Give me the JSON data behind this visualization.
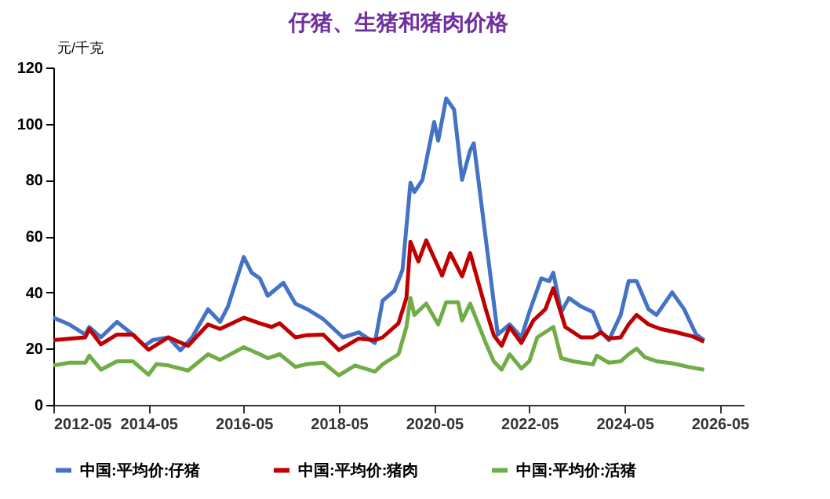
{
  "chart_data": {
    "type": "line",
    "title": "仔猪、生猪和猪肉价格",
    "ylabel": "元/千克",
    "xlim": [
      "2012-05",
      "2026-11"
    ],
    "xticks": [
      "2012-05",
      "2014-05",
      "2016-05",
      "2018-05",
      "2020-05",
      "2022-05",
      "2024-05",
      "2026-05"
    ],
    "ylim": [
      0,
      120
    ],
    "yticks": [
      0,
      20,
      40,
      60,
      80,
      100,
      120
    ],
    "grid": false,
    "legend": "bottom",
    "marker": "none",
    "line_style": "solid",
    "series": [
      {
        "name": "中国:平均价:仔猪",
        "color": "#4472c4",
        "x": [
          "2012-05",
          "2012-09",
          "2013-01",
          "2013-02",
          "2013-05",
          "2013-09",
          "2014-01",
          "2014-04",
          "2014-06",
          "2014-10",
          "2015-01",
          "2015-04",
          "2015-08",
          "2015-11",
          "2016-01",
          "2016-05",
          "2016-07",
          "2016-09",
          "2016-11",
          "2017-03",
          "2017-06",
          "2017-09",
          "2018-01",
          "2018-06",
          "2018-10",
          "2019-02",
          "2019-04",
          "2019-07",
          "2019-09",
          "2019-11",
          "2019-12",
          "2020-02",
          "2020-05",
          "2020-06",
          "2020-08",
          "2020-10",
          "2020-12",
          "2021-02",
          "2021-03",
          "2021-07",
          "2021-09",
          "2021-12",
          "2022-03",
          "2022-05",
          "2022-08",
          "2022-10",
          "2022-11",
          "2023-01",
          "2023-03",
          "2023-06",
          "2023-09",
          "2023-11",
          "2024-01",
          "2024-04",
          "2024-06",
          "2024-08",
          "2024-11",
          "2025-01",
          "2025-05",
          "2025-08",
          "2025-11",
          "2026-01"
        ],
        "values": [
          31,
          28.6,
          25,
          27.7,
          24,
          29.5,
          25,
          21,
          23,
          24,
          19.4,
          24,
          34,
          29.5,
          35,
          52.6,
          47,
          45,
          38.8,
          43.4,
          36,
          34,
          30.5,
          24,
          25.8,
          22,
          37,
          40.6,
          48,
          79,
          75.7,
          80,
          100.6,
          94,
          109,
          105,
          80,
          90.5,
          93,
          48,
          25,
          28.6,
          24,
          33,
          45,
          44,
          47,
          33,
          38,
          35,
          33,
          26,
          23,
          32,
          44,
          44,
          34,
          32,
          40,
          34,
          25,
          23
        ]
      },
      {
        "name": "中国:平均价:猪肉",
        "color": "#c00000",
        "x": [
          "2012-05",
          "2013-01",
          "2013-02",
          "2013-05",
          "2013-09",
          "2014-01",
          "2014-05",
          "2014-10",
          "2015-03",
          "2015-08",
          "2015-11",
          "2016-05",
          "2016-09",
          "2016-12",
          "2017-02",
          "2017-06",
          "2017-09",
          "2018-01",
          "2018-05",
          "2018-10",
          "2019-02",
          "2019-04",
          "2019-08",
          "2019-10",
          "2019-11",
          "2020-01",
          "2020-03",
          "2020-07",
          "2020-09",
          "2020-12",
          "2021-02",
          "2021-06",
          "2021-08",
          "2021-10",
          "2021-12",
          "2022-03",
          "2022-06",
          "2022-09",
          "2022-11",
          "2023-02",
          "2023-06",
          "2023-09",
          "2023-11",
          "2024-01",
          "2024-04",
          "2024-06",
          "2024-08",
          "2024-11",
          "2025-02",
          "2025-06",
          "2025-10",
          "2026-01"
        ],
        "values": [
          23,
          24,
          27,
          21.5,
          25,
          25,
          19.6,
          24,
          21,
          28.6,
          27,
          31,
          29,
          27.7,
          29,
          24,
          24.8,
          25,
          19.5,
          23.6,
          23,
          24,
          29,
          38,
          58,
          51,
          58.5,
          46,
          54,
          45.7,
          54,
          34,
          24.8,
          21,
          27.7,
          22,
          30,
          34,
          41.5,
          27.7,
          24,
          24,
          25.8,
          23.6,
          24,
          28.6,
          32,
          28.6,
          27,
          25.8,
          24.4,
          22.5
        ]
      },
      {
        "name": "中国:平均价:活猪",
        "color": "#70ad47",
        "x": [
          "2012-05",
          "2012-09",
          "2013-01",
          "2013-02",
          "2013-05",
          "2013-09",
          "2014-01",
          "2014-05",
          "2014-07",
          "2014-10",
          "2015-03",
          "2015-08",
          "2015-11",
          "2016-05",
          "2016-09",
          "2016-11",
          "2017-02",
          "2017-06",
          "2017-09",
          "2018-01",
          "2018-05",
          "2018-09",
          "2019-02",
          "2019-04",
          "2019-08",
          "2019-10",
          "2019-11",
          "2019-12",
          "2020-03",
          "2020-06",
          "2020-08",
          "2020-11",
          "2020-12",
          "2021-02",
          "2021-06",
          "2021-08",
          "2021-10",
          "2021-12",
          "2022-03",
          "2022-05",
          "2022-07",
          "2022-11",
          "2023-01",
          "2023-04",
          "2023-09",
          "2023-10",
          "2024-01",
          "2024-04",
          "2024-06",
          "2024-08",
          "2024-10",
          "2025-01",
          "2025-05",
          "2025-09",
          "2026-01"
        ],
        "values": [
          14,
          15,
          15,
          17.5,
          12.5,
          15.5,
          15.5,
          10.7,
          14.5,
          14,
          12.2,
          18,
          16,
          20.5,
          18,
          16.6,
          18,
          13.5,
          14.5,
          15,
          10.5,
          14,
          11.8,
          14.4,
          18,
          27.7,
          38,
          32,
          36,
          28.6,
          36.5,
          36.5,
          30,
          36,
          22,
          15.5,
          12.5,
          18,
          12.9,
          15.5,
          24,
          27.7,
          16.6,
          15.5,
          14.4,
          17.5,
          15,
          15.5,
          18,
          20,
          17,
          15.5,
          14.8,
          13.5,
          12.5
        ]
      }
    ]
  }
}
